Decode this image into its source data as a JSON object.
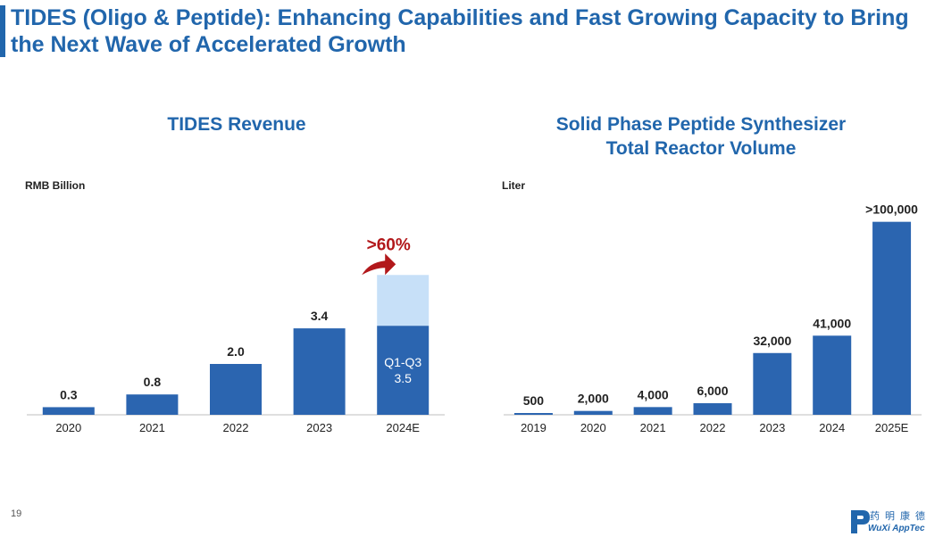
{
  "slide": {
    "title": "TIDES (Oligo & Peptide): Enhancing Capabilities and Fast Growing Capacity to Bring the Next Wave of Accelerated Growth",
    "page_number": "19",
    "logo": {
      "text": "WuXi AppTec",
      "chinese": "药明康德"
    }
  },
  "colors": {
    "title": "#2166ac",
    "bar": "#2b65b0",
    "bar_light": "#c7e0f8",
    "growth_arrow": "#b2181b"
  },
  "chart_data": [
    {
      "type": "bar",
      "title": "TIDES Revenue",
      "unit_label": "RMB Billion",
      "categories": [
        "2020",
        "2021",
        "2022",
        "2023",
        "2024E"
      ],
      "values": [
        0.3,
        0.8,
        2.0,
        3.4,
        5.5
      ],
      "value_labels": [
        "0.3",
        "0.8",
        "2.0",
        "3.4",
        ""
      ],
      "stacked_2024E": {
        "q1_q3_value": 3.5,
        "q1_q3_label": "Q1-Q3",
        "q1_q3_value_label": "3.5"
      },
      "annotation": ">60%",
      "ylim": [
        0,
        6
      ]
    },
    {
      "type": "bar",
      "title": "Solid Phase Peptide Synthesizer Total Reactor Volume",
      "title_lines": [
        "Solid Phase Peptide Synthesizer",
        "Total Reactor Volume"
      ],
      "unit_label": "Liter",
      "categories": [
        "2019",
        "2020",
        "2021",
        "2022",
        "2023",
        "2024",
        "2025E"
      ],
      "values": [
        500,
        2000,
        4000,
        6000,
        32000,
        41000,
        100000
      ],
      "value_labels": [
        "500",
        "2,000",
        "4,000",
        "6,000",
        "32,000",
        "41,000",
        ">100,000"
      ],
      "ylim": [
        0,
        104000
      ]
    }
  ]
}
